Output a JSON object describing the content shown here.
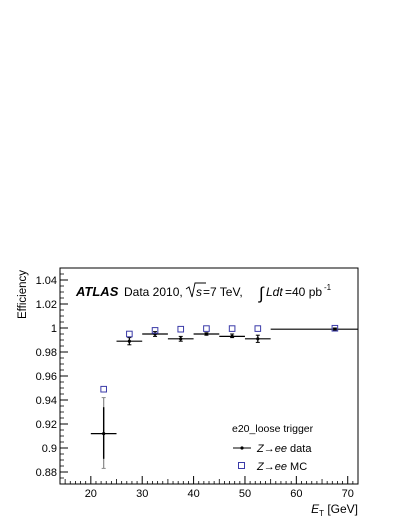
{
  "chart_data": {
    "type": "scatter",
    "title": "",
    "xlabel_main": "E",
    "xlabel_sub": "T",
    "xlabel_unit": " [GeV]",
    "ylabel": "Efficiency",
    "xlim": [
      14,
      72
    ],
    "ylim": [
      0.87,
      1.05
    ],
    "xticks": [
      20,
      30,
      40,
      50,
      60,
      70
    ],
    "yticks": [
      0.88,
      0.9,
      0.92,
      0.94,
      0.96,
      0.98,
      1,
      1.02,
      1.04
    ],
    "ytick_labels": [
      "0.88",
      "0.9",
      "0.92",
      "0.94",
      "0.96",
      "0.98",
      "1",
      "1.02",
      "1.04"
    ],
    "legend_position": "bottom-right",
    "annotation": {
      "atlas": "ATLAS",
      "dataset": "Data 2010,",
      "sqrt_s": "s",
      "sqrt_s_value": "=7 TeV,",
      "lumi_prefix": "Ldt",
      "lumi_value": "=40 pb",
      "lumi_exp": "-1"
    },
    "legend_title": "e20_loose trigger",
    "series": [
      {
        "name_prefix": "Z",
        "name_arrow": "→",
        "name_ee": "ee",
        "name_suffix": " data",
        "style": "marker-errorbar",
        "color": "#000000",
        "points": [
          {
            "x": 22.5,
            "y": 0.912,
            "xlo": 20,
            "xhi": 25,
            "ylo": 0.883,
            "yhi": 0.942
          },
          {
            "x": 27.5,
            "y": 0.989,
            "xlo": 25,
            "xhi": 30,
            "ylo": 0.986,
            "yhi": 0.992
          },
          {
            "x": 32.5,
            "y": 0.995,
            "xlo": 30,
            "xhi": 35,
            "ylo": 0.993,
            "yhi": 0.997
          },
          {
            "x": 37.5,
            "y": 0.991,
            "xlo": 35,
            "xhi": 40,
            "ylo": 0.989,
            "yhi": 0.993
          },
          {
            "x": 42.5,
            "y": 0.995,
            "xlo": 40,
            "xhi": 45,
            "ylo": 0.994,
            "yhi": 0.996
          },
          {
            "x": 47.5,
            "y": 0.993,
            "xlo": 45,
            "xhi": 50,
            "ylo": 0.992,
            "yhi": 0.995
          },
          {
            "x": 52.5,
            "y": 0.991,
            "xlo": 50,
            "xhi": 55,
            "ylo": 0.988,
            "yhi": 0.994
          },
          {
            "x": 67.5,
            "y": 0.999,
            "xlo": 55,
            "xhi": 80,
            "ylo": 0.998,
            "yhi": 1.0
          }
        ]
      },
      {
        "name_prefix": "Z",
        "name_arrow": "→",
        "name_ee": "ee",
        "name_suffix": " MC",
        "style": "open-square",
        "color": "#3a3aa8",
        "points": [
          {
            "x": 22.5,
            "y": 0.949
          },
          {
            "x": 27.5,
            "y": 0.995
          },
          {
            "x": 32.5,
            "y": 0.998
          },
          {
            "x": 37.5,
            "y": 0.999
          },
          {
            "x": 42.5,
            "y": 0.9995
          },
          {
            "x": 47.5,
            "y": 0.9995
          },
          {
            "x": 52.5,
            "y": 0.9995
          },
          {
            "x": 67.5,
            "y": 0.9998
          }
        ]
      }
    ]
  }
}
